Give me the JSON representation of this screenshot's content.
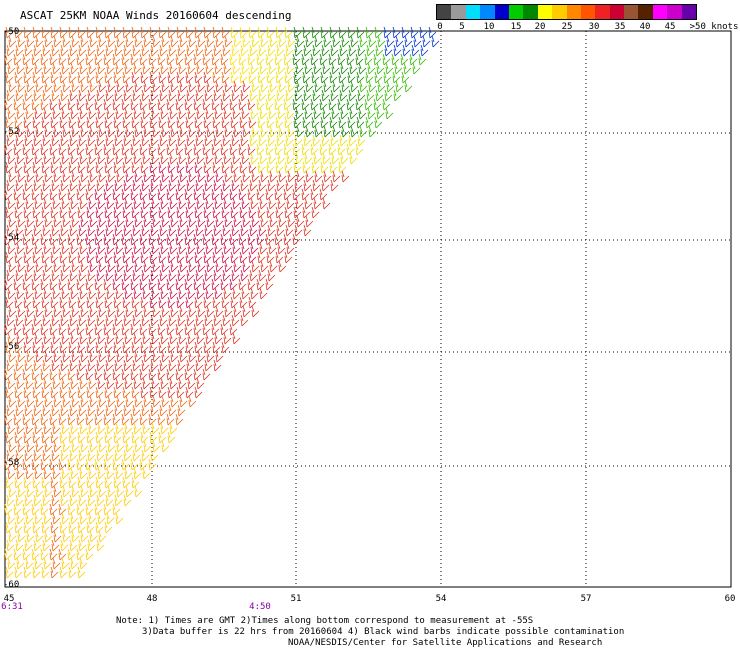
{
  "title": "ASCAT 25KM NOAA Winds 20160604 descending",
  "legend": {
    "colors": [
      "#444444",
      "#9a9a9a",
      "#00ddff",
      "#0088ff",
      "#0000cc",
      "#00cc00",
      "#008800",
      "#ffff00",
      "#ffcc00",
      "#ff8800",
      "#ff5500",
      "#ee2222",
      "#cc0033",
      "#995533",
      "#552200",
      "#ff00ff",
      "#cc00cc",
      "#6600aa"
    ],
    "labels": [
      "0",
      "5",
      "10",
      "15",
      "20",
      "25",
      "30",
      "35",
      "40",
      "45",
      ">50 knots"
    ]
  },
  "map": {
    "lon_ticks": [
      "45",
      "48",
      "51",
      "54",
      "57",
      "60"
    ],
    "lat_ticks": [
      "-50",
      "-52",
      "-54",
      "-56",
      "-58",
      "-60"
    ],
    "time_labels": [
      "6:31",
      "4:50"
    ]
  },
  "notes": {
    "line1": "Note: 1) Times are GMT 2)Times along bottom correspond to measurement at -55S",
    "line2": "3)Data buffer is 22 hrs from 20160604 4) Black wind barbs indicate possible contamination",
    "line3": "NOAA/NESDIS/Center for Satellite Applications and Research"
  }
}
